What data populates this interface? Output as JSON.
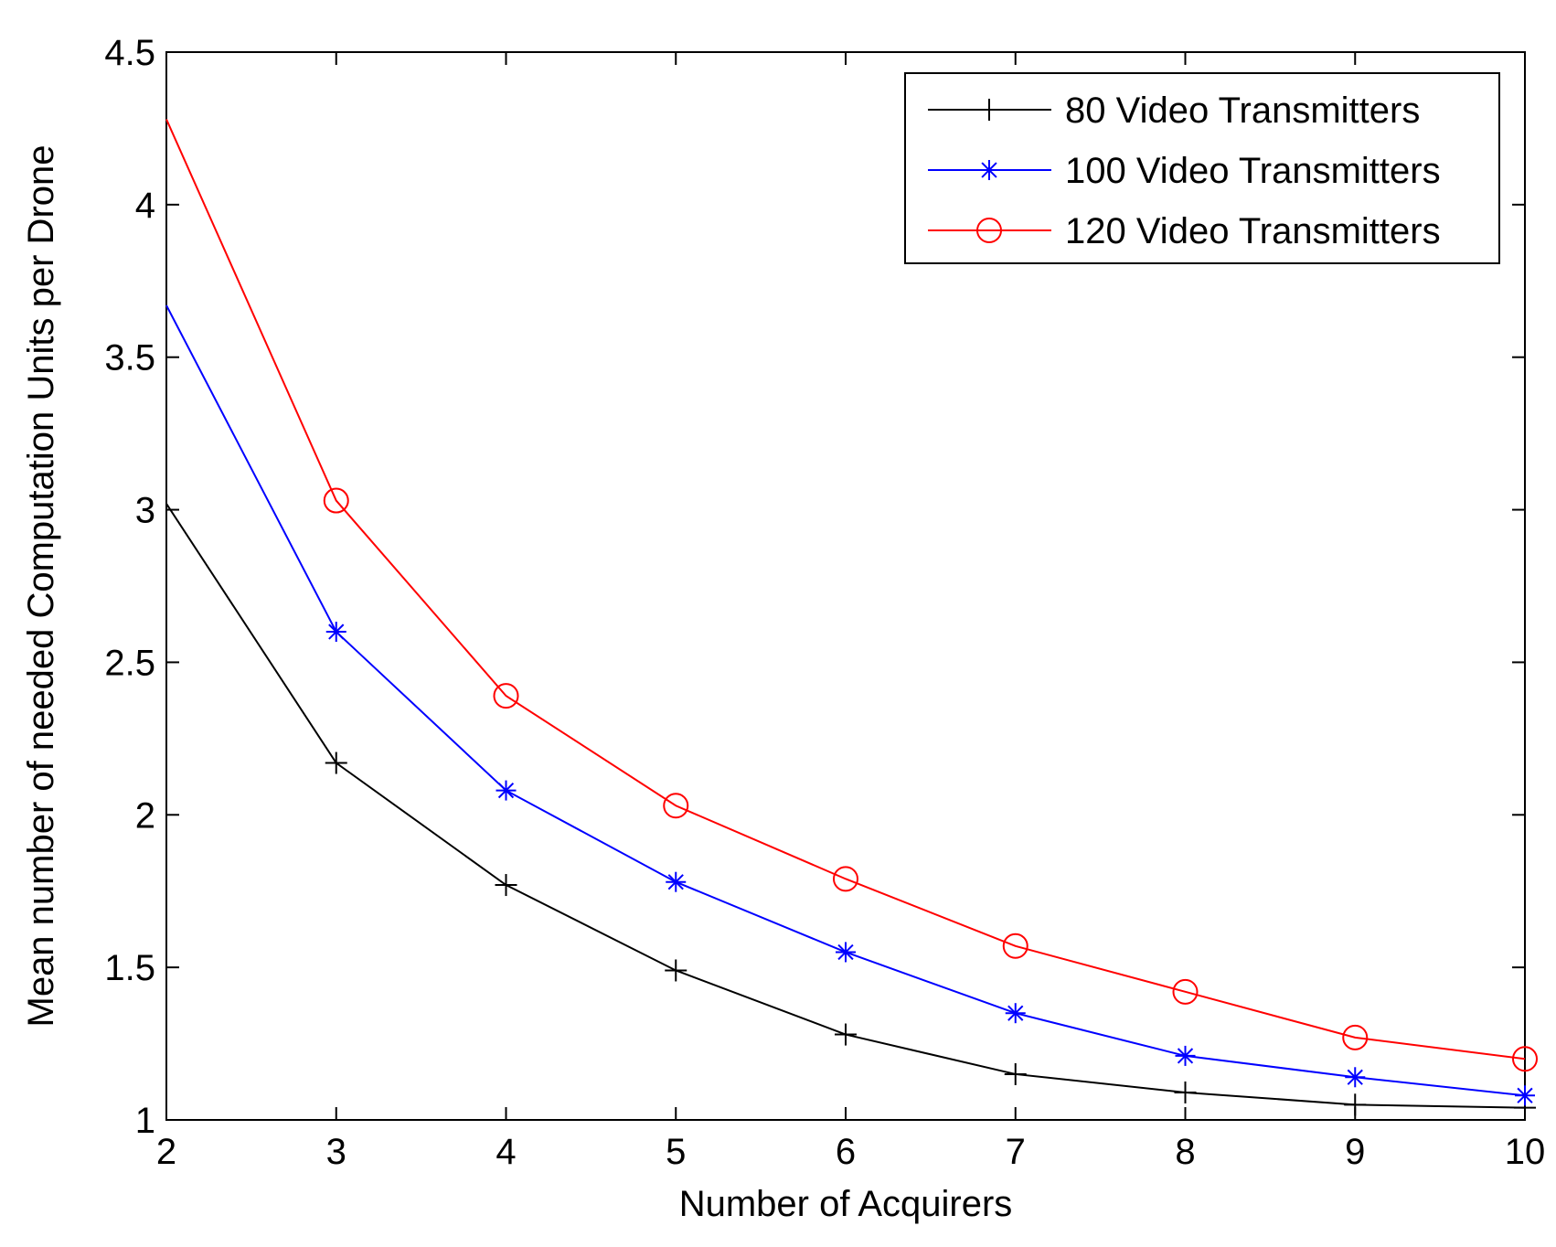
{
  "chart_data": {
    "type": "line",
    "title": "",
    "xlabel": "Number of Acquirers",
    "ylabel": "Mean number of needed Computation Units per Drone",
    "xlim": [
      2,
      10
    ],
    "ylim": [
      1,
      4.5
    ],
    "xticks": [
      2,
      3,
      4,
      5,
      6,
      7,
      8,
      9,
      10
    ],
    "yticks": [
      1,
      1.5,
      2,
      2.5,
      3,
      3.5,
      4,
      4.5
    ],
    "xtick_labels": [
      "2",
      "3",
      "4",
      "5",
      "6",
      "7",
      "8",
      "9",
      "10"
    ],
    "ytick_labels": [
      "1",
      "1.5",
      "2",
      "2.5",
      "3",
      "3.5",
      "4",
      "4.5"
    ],
    "grid": false,
    "legend_position": "top-right",
    "x": [
      2,
      3,
      4,
      5,
      6,
      7,
      8,
      9,
      10
    ],
    "series": [
      {
        "name": "80 Video Transmitters",
        "color": "#000000",
        "marker": "plus",
        "values": [
          3.02,
          2.17,
          1.77,
          1.49,
          1.28,
          1.15,
          1.09,
          1.05,
          1.04
        ]
      },
      {
        "name": "100 Video Transmitters",
        "color": "#0000ff",
        "marker": "asterisk",
        "values": [
          3.67,
          2.6,
          2.08,
          1.78,
          1.55,
          1.35,
          1.21,
          1.14,
          1.08
        ]
      },
      {
        "name": "120 Video Transmitters",
        "color": "#ff0000",
        "marker": "circle",
        "values": [
          4.28,
          3.03,
          2.39,
          2.03,
          1.79,
          1.57,
          1.42,
          1.27,
          1.2
        ]
      }
    ]
  }
}
